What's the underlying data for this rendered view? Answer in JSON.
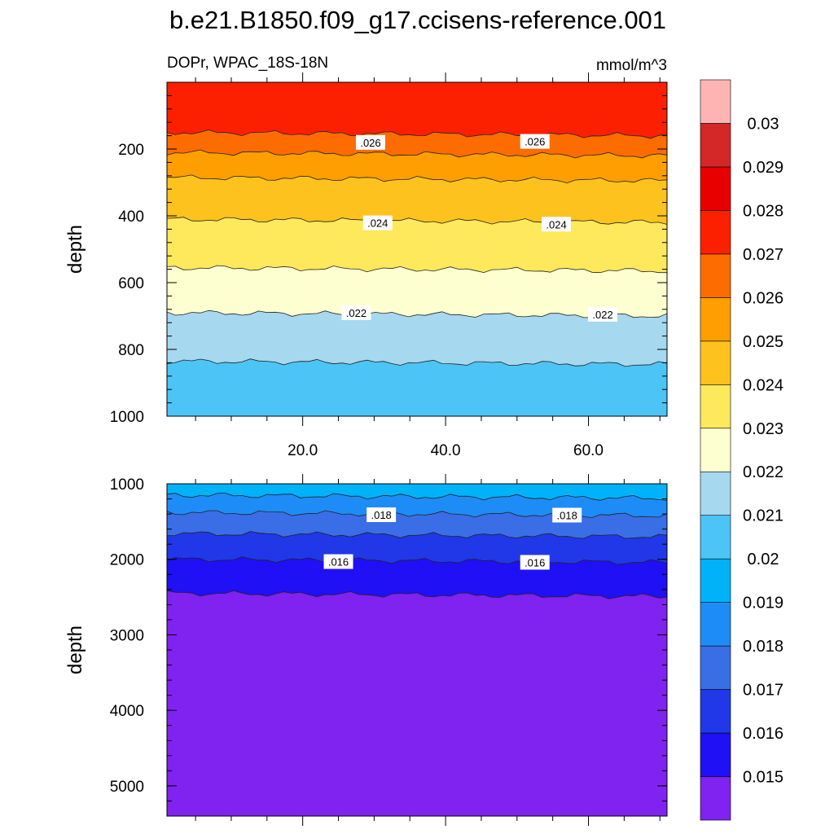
{
  "title": "b.e21.B1850.f09_g17.ccisens-reference.001",
  "chart_data": {
    "type": "contour",
    "title": "b.e21.B1850.f09_g17.ccisens-reference.001",
    "subtitle_left": "DOPr, WPAC_18S-18N",
    "subtitle_right": "mmol/m^3",
    "xlim": [
      1,
      71
    ],
    "x_ticks": [
      "20.0",
      "40.0",
      "60.0"
    ],
    "x_tick_values": [
      20,
      40,
      60
    ],
    "colorbar": {
      "levels": [
        "0.015",
        "0.016",
        "0.017",
        "0.018",
        "0.019",
        "0.02",
        "0.021",
        "0.022",
        "0.023",
        "0.024",
        "0.025",
        "0.026",
        "0.027",
        "0.028",
        "0.029",
        "0.03"
      ],
      "colors": [
        "#8022f0",
        "#2010f5",
        "#2038e8",
        "#3a6ee6",
        "#1e8cf6",
        "#00b2f8",
        "#4cc4f6",
        "#a6d8ef",
        "#feffd0",
        "#fee85c",
        "#fec21e",
        "#fe9e00",
        "#fd6c00",
        "#fd2000",
        "#e80000",
        "#d42828",
        "#ffb4b4"
      ]
    },
    "panels": [
      {
        "name": "upper",
        "ylabel": "depth",
        "ylim": [
          0,
          1000
        ],
        "y_reversed": true,
        "y_ticks": [
          "200",
          "400",
          "600",
          "800",
          "1000"
        ],
        "y_tick_values": [
          200,
          400,
          600,
          800,
          1000
        ],
        "bands": [
          {
            "top": 0,
            "bottom": 155,
            "color_index": 13
          },
          {
            "top": 155,
            "bottom": 215,
            "color_index": 12
          },
          {
            "top": 215,
            "bottom": 290,
            "color_index": 11
          },
          {
            "top": 290,
            "bottom": 415,
            "color_index": 10
          },
          {
            "top": 415,
            "bottom": 560,
            "color_index": 9
          },
          {
            "top": 560,
            "bottom": 695,
            "color_index": 8
          },
          {
            "top": 695,
            "bottom": 840,
            "color_index": 7
          },
          {
            "top": 840,
            "bottom": 1000,
            "color_index": 6
          }
        ],
        "contour_labels": [
          {
            "text": ".026",
            "x": 29.5,
            "depth": 180
          },
          {
            "text": ".026",
            "x": 52.5,
            "depth": 177
          },
          {
            "text": ".024",
            "x": 30.5,
            "depth": 421
          },
          {
            "text": ".024",
            "x": 55.5,
            "depth": 425
          },
          {
            "text": ".022",
            "x": 27.5,
            "depth": 690
          },
          {
            "text": ".022",
            "x": 62,
            "depth": 695
          }
        ]
      },
      {
        "name": "lower",
        "ylabel": "depth",
        "ylim": [
          1000,
          5400
        ],
        "y_reversed": true,
        "y_ticks": [
          "1000",
          "2000",
          "3000",
          "4000",
          "5000"
        ],
        "y_tick_values": [
          1000,
          2000,
          3000,
          4000,
          5000
        ],
        "bands": [
          {
            "top": 1000,
            "bottom": 1170,
            "color_index": 5
          },
          {
            "top": 1170,
            "bottom": 1400,
            "color_index": 4
          },
          {
            "top": 1400,
            "bottom": 1680,
            "color_index": 3
          },
          {
            "top": 1680,
            "bottom": 2020,
            "color_index": 2
          },
          {
            "top": 2020,
            "bottom": 2470,
            "color_index": 1
          },
          {
            "top": 2470,
            "bottom": 5400,
            "color_index": 0
          }
        ],
        "contour_labels": [
          {
            "text": ".018",
            "x": 31,
            "depth": 1410
          },
          {
            "text": ".018",
            "x": 57,
            "depth": 1415
          },
          {
            "text": ".016",
            "x": 25,
            "depth": 2030
          },
          {
            "text": ".016",
            "x": 52.5,
            "depth": 2040
          }
        ]
      }
    ]
  }
}
